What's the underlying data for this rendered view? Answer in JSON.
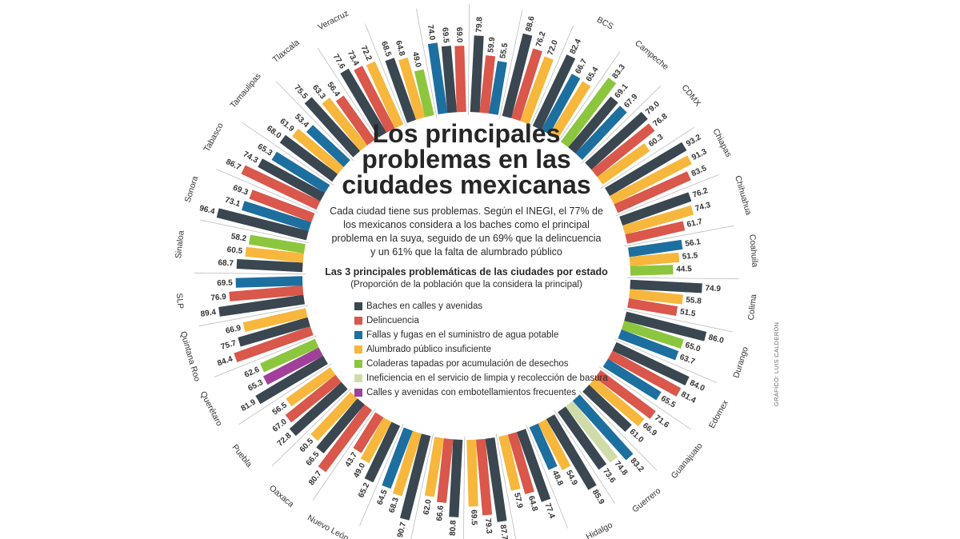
{
  "chart_data": {
    "type": "radial-bar",
    "title": [
      "Los principales",
      "problemas en las",
      "ciudades mexicanas"
    ],
    "intro": [
      "Cada ciudad tiene sus problemas. Según el INEGI, el 77% de",
      "los mexicanos considera a los baches como el principal",
      "problema en la suya, seguido de un 69% que la delincuencia",
      "y un 61% que la falta de alumbrado público"
    ],
    "subtitle": "Las 3 principales problemáticas de las ciudades por estado",
    "note": "(Proporción de la población que la considera la principal)",
    "legend": [
      {
        "name": "Baches en calles y avenidas",
        "color": "#3a4750"
      },
      {
        "name": "Delincuencia",
        "color": "#d9574b"
      },
      {
        "name": "Fallas y fugas en el suministro de agua potable",
        "color": "#1d6f9f"
      },
      {
        "name": "Alumbrado público insuficiente",
        "color": "#f6b73c"
      },
      {
        "name": "Coladeras tapadas por acumulación de desechos",
        "color": "#8cc63e"
      },
      {
        "name": "Ineficiencia en el servicio de limpia y recolección de basura",
        "color": "#cfdcaa"
      },
      {
        "name": "Calles y avenidas con embotellamientos frecuentes",
        "color": "#a0409a"
      }
    ],
    "categories": [
      "Veracruz",
      null,
      null,
      null,
      null,
      "BCS",
      "Campeche",
      "CDMX",
      "Chiapas",
      "Chihuahua",
      "Coahuila",
      "Colima",
      "Durango",
      "Edomex",
      "Guanajuato",
      "Guerrero",
      "Hidalgo",
      null,
      null,
      null,
      null,
      "Nuevo León",
      "Oaxaca",
      "Puebla",
      "Querétaro",
      "Quintana Roo",
      "SLP",
      "Sinaloa",
      "Sonora",
      "Tabasco",
      "Tamaulipas",
      "Tlaxcala"
    ],
    "values": [
      [
        77.6,
        73.4,
        72.2
      ],
      [
        68.5,
        64.8,
        49.0
      ],
      [
        74.0,
        69.5,
        69.0
      ],
      [
        79.8,
        59.9,
        55.5
      ],
      [
        88.6,
        76.2,
        72.0
      ],
      [
        82.4,
        66.7,
        65.4
      ],
      [
        83.3,
        69.1,
        67.9
      ],
      [
        79.0,
        76.8,
        60.3
      ],
      [
        93.2,
        91.3,
        83.5
      ],
      [
        76.2,
        74.3,
        61.7
      ],
      [
        56.1,
        51.5,
        44.5
      ],
      [
        74.9,
        55.8,
        51.5
      ],
      [
        86.0,
        65.0,
        63.7
      ],
      [
        84.0,
        81.4,
        65.5
      ],
      [
        71.6,
        66.9,
        61.0
      ],
      [
        83.2,
        74.8,
        73.6
      ],
      [
        85.9,
        54.9,
        48.8
      ],
      [
        77.4,
        64.8,
        57.9
      ],
      [
        87.7,
        79.3,
        69.5
      ],
      [
        80.8,
        66.6,
        62.0
      ],
      [
        90.7,
        68.3,
        64.5
      ],
      [
        65.2,
        49.0,
        43.7
      ],
      [
        80.7,
        66.5,
        60.5
      ],
      [
        72.8,
        67.0,
        56.5
      ],
      [
        81.9,
        65.3,
        62.6
      ],
      [
        84.4,
        75.7,
        66.9
      ],
      [
        89.4,
        76.9,
        69.5
      ],
      [
        68.7,
        60.5,
        58.2
      ],
      [
        96.4,
        73.1,
        69.3
      ],
      [
        86.7,
        74.3,
        65.3
      ],
      [
        68.0,
        61.9,
        53.4
      ],
      [
        75.5,
        63.3,
        56.4
      ]
    ],
    "value_labels": [
      [
        "77.6",
        "73.4",
        "72.2"
      ],
      [
        "68.5",
        "64.8",
        "49.0"
      ],
      [
        "74.0",
        "69.5",
        "69.0"
      ],
      [
        "79.8",
        "59.9",
        "55.5"
      ],
      [
        "88.6",
        "76.2",
        "72.0"
      ],
      [
        "82.4",
        "66.7",
        "65.4"
      ],
      [
        "83.3",
        "69.1",
        "67.9"
      ],
      [
        "79.0",
        "76.8",
        "60.3"
      ],
      [
        "93.2",
        "91.3",
        "83.5"
      ],
      [
        "76.2",
        "74.3",
        "61.7"
      ],
      [
        "56.1",
        "51.5",
        "44.5"
      ],
      [
        "74.9",
        "55.8",
        "51.5"
      ],
      [
        "86.0",
        "65.0",
        "63.7"
      ],
      [
        "84.0",
        "81.4",
        "65.5"
      ],
      [
        "71.6",
        "66.9",
        "61.0"
      ],
      [
        "83.2",
        "74.8",
        "73.6"
      ],
      [
        "85.9",
        "54.9",
        "48.8"
      ],
      [
        "77.4",
        "64.8",
        "57.9"
      ],
      [
        "87.7",
        "79.3",
        "69.5"
      ],
      [
        "80.8",
        "66.6",
        "62.0"
      ],
      [
        "90.7",
        "68.3",
        "64.5"
      ],
      [
        "65.2",
        "49.0",
        "43.7"
      ],
      [
        "80.7",
        "66.5",
        "60.5"
      ],
      [
        "72.8",
        "67.0",
        "56.5"
      ],
      [
        "81.9",
        "65.3",
        "62.6"
      ],
      [
        "84.4",
        "75.7",
        "66.9"
      ],
      [
        "89.4",
        "76.9",
        "69.5"
      ],
      [
        "68.7",
        "60.5",
        "58.2"
      ],
      [
        "96.4",
        "73.1",
        "69.3"
      ],
      [
        "86.7",
        "74.3",
        "65.3"
      ],
      [
        "68.0",
        "61.9",
        "53.4"
      ],
      [
        "75.5",
        "63.3",
        "56.4"
      ]
    ],
    "colors": [
      [
        "#3a4750",
        "#d9574b",
        "#f6b73c"
      ],
      [
        "#3a4750",
        "#f6b73c",
        "#8cc63e"
      ],
      [
        "#1d6f9f",
        "#3a4750",
        "#d9574b"
      ],
      [
        "#3a4750",
        "#d9574b",
        "#1d6f9f"
      ],
      [
        "#3a4750",
        "#d9574b",
        "#f6b73c"
      ],
      [
        "#3a4750",
        "#1d6f9f",
        "#f6b73c"
      ],
      [
        "#8cc63e",
        "#3a4750",
        "#1d6f9f"
      ],
      [
        "#3a4750",
        "#d9574b",
        "#f6b73c"
      ],
      [
        "#3a4750",
        "#f6b73c",
        "#d9574b"
      ],
      [
        "#3a4750",
        "#f6b73c",
        "#d9574b"
      ],
      [
        "#1d6f9f",
        "#f6b73c",
        "#8cc63e"
      ],
      [
        "#3a4750",
        "#f6b73c",
        "#d9574b"
      ],
      [
        "#3a4750",
        "#8cc63e",
        "#1d6f9f"
      ],
      [
        "#3a4750",
        "#d9574b",
        "#1d6f9f"
      ],
      [
        "#d9574b",
        "#f6b73c",
        "#3a4750"
      ],
      [
        "#1d6f9f",
        "#cfdcaa",
        "#3a4750"
      ],
      [
        "#3a4750",
        "#f6b73c",
        "#1d6f9f"
      ],
      [
        "#3a4750",
        "#d9574b",
        "#f6b73c"
      ],
      [
        "#3a4750",
        "#d9574b",
        "#f6b73c"
      ],
      [
        "#3a4750",
        "#d9574b",
        "#f6b73c"
      ],
      [
        "#3a4750",
        "#f6b73c",
        "#1d6f9f"
      ],
      [
        "#3a4750",
        "#f6b73c",
        "#d9574b"
      ],
      [
        "#d9574b",
        "#3a4750",
        "#f6b73c"
      ],
      [
        "#3a4750",
        "#d9574b",
        "#f6b73c"
      ],
      [
        "#3a4750",
        "#a0409a",
        "#8cc63e"
      ],
      [
        "#d9574b",
        "#3a4750",
        "#f6b73c"
      ],
      [
        "#3a4750",
        "#d9574b",
        "#1d6f9f"
      ],
      [
        "#3a4750",
        "#f6b73c",
        "#8cc63e"
      ],
      [
        "#3a4750",
        "#1d6f9f",
        "#d9574b"
      ],
      [
        "#d9574b",
        "#3a4750",
        "#1d6f9f"
      ],
      [
        "#3a4750",
        "#f6b73c",
        "#1d6f9f"
      ],
      [
        "#3a4750",
        "#f6b73c",
        "#d9574b"
      ]
    ],
    "credit": "GRÁFICO: LUIS CALDERÓN"
  }
}
